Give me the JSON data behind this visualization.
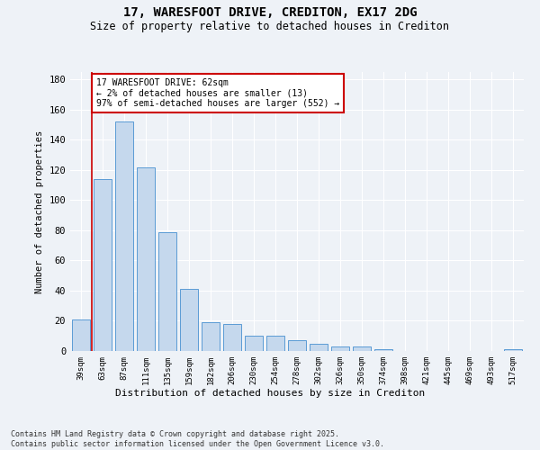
{
  "title": "17, WARESFOOT DRIVE, CREDITON, EX17 2DG",
  "subtitle": "Size of property relative to detached houses in Crediton",
  "xlabel": "Distribution of detached houses by size in Crediton",
  "ylabel": "Number of detached properties",
  "categories": [
    "39sqm",
    "63sqm",
    "87sqm",
    "111sqm",
    "135sqm",
    "159sqm",
    "182sqm",
    "206sqm",
    "230sqm",
    "254sqm",
    "278sqm",
    "302sqm",
    "326sqm",
    "350sqm",
    "374sqm",
    "398sqm",
    "421sqm",
    "445sqm",
    "469sqm",
    "493sqm",
    "517sqm"
  ],
  "values": [
    21,
    114,
    152,
    122,
    79,
    41,
    19,
    18,
    10,
    10,
    7,
    5,
    3,
    3,
    1,
    0,
    0,
    0,
    0,
    0,
    1
  ],
  "bar_color": "#c5d8ed",
  "bar_edge_color": "#5b9bd5",
  "property_line_color": "#cc0000",
  "annotation_text": "17 WARESFOOT DRIVE: 62sqm\n← 2% of detached houses are smaller (13)\n97% of semi-detached houses are larger (552) →",
  "annotation_box_color": "#cc0000",
  "background_color": "#eef2f7",
  "grid_color": "#ffffff",
  "footnote": "Contains HM Land Registry data © Crown copyright and database right 2025.\nContains public sector information licensed under the Open Government Licence v3.0.",
  "ylim": [
    0,
    185
  ],
  "yticks": [
    0,
    20,
    40,
    60,
    80,
    100,
    120,
    140,
    160,
    180
  ]
}
